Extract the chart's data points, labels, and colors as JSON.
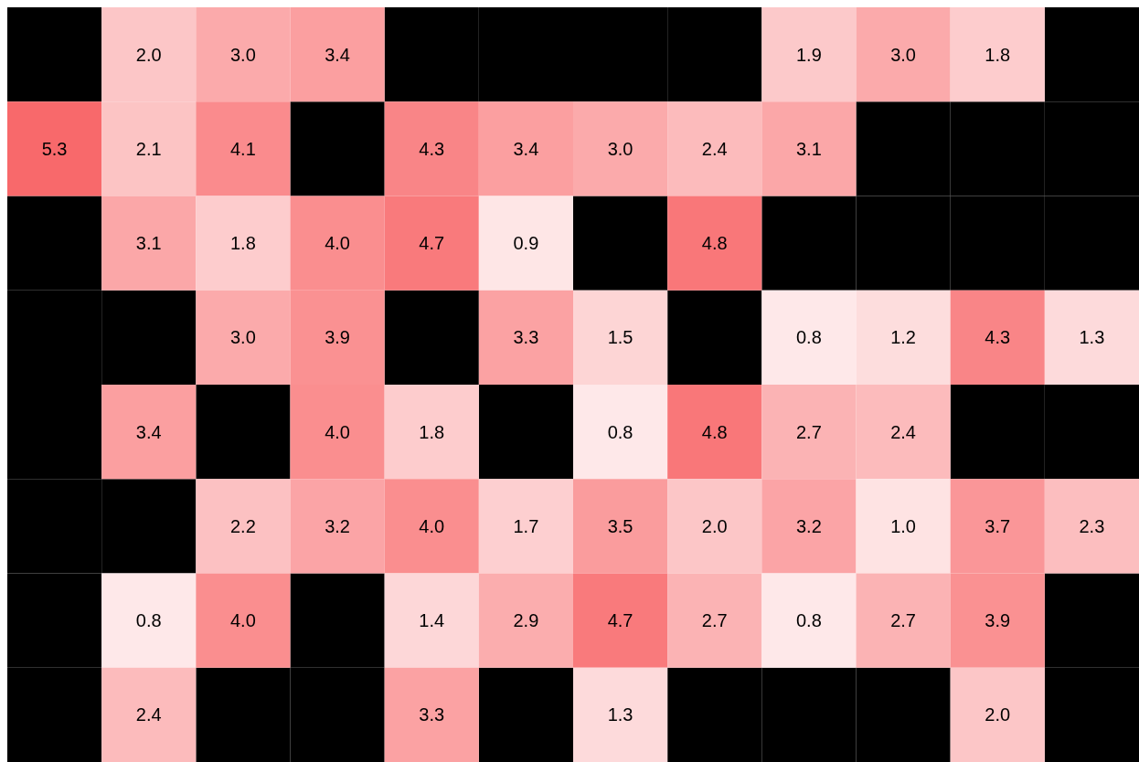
{
  "chart_data": {
    "type": "heatmap",
    "categories": [
      null,
      null,
      null,
      null,
      null,
      null,
      null,
      null,
      null,
      null,
      null,
      null
    ],
    "y_categories": [
      null,
      null,
      null,
      null,
      null,
      null,
      null,
      null
    ],
    "color": "#f8696b",
    "data_labels": true,
    "tick_labels": false,
    "cells": [
      [
        null,
        2.0,
        3.0,
        3.4,
        null,
        null,
        null,
        null,
        1.9,
        3.0,
        1.8,
        null
      ],
      [
        5.3,
        2.1,
        4.1,
        null,
        4.3,
        3.4,
        3.0,
        2.4,
        3.1,
        null,
        null,
        null
      ],
      [
        null,
        3.1,
        1.8,
        4.0,
        4.7,
        0.9,
        null,
        4.8,
        null,
        null,
        null,
        null
      ],
      [
        null,
        null,
        3.0,
        3.9,
        null,
        3.3,
        1.5,
        null,
        0.8,
        1.2,
        4.3,
        1.3
      ],
      [
        null,
        3.4,
        null,
        4.0,
        1.8,
        null,
        0.8,
        4.8,
        2.7,
        2.4,
        null,
        null
      ],
      [
        null,
        null,
        2.2,
        3.2,
        4.0,
        1.7,
        3.5,
        2.0,
        3.2,
        1.0,
        3.7,
        2.3
      ],
      [
        null,
        0.8,
        4.0,
        null,
        1.4,
        2.9,
        4.7,
        2.7,
        0.8,
        2.7,
        3.9,
        null
      ],
      [
        null,
        2.4,
        null,
        null,
        3.3,
        null,
        1.3,
        null,
        null,
        null,
        2.0,
        null
      ]
    ],
    "cell_labels": [
      [
        null,
        "2.0",
        "3.0",
        "3.4",
        null,
        null,
        null,
        null,
        "1.9",
        "3.0",
        "1.8",
        null
      ],
      [
        "5.3",
        "2.1",
        "4.1",
        null,
        "4.3",
        "3.4",
        "3.0",
        "2.4",
        "3.1",
        null,
        null,
        null
      ],
      [
        null,
        "3.1",
        "1.8",
        "4.0",
        "4.7",
        "0.9",
        null,
        "4.8",
        null,
        null,
        null,
        null
      ],
      [
        null,
        null,
        "3.0",
        "3.9",
        null,
        "3.3",
        "1.5",
        null,
        "0.8",
        "1.2",
        "4.3",
        "1.3"
      ],
      [
        null,
        "3.4",
        null,
        "4.0",
        "1.8",
        null,
        "0.8",
        "4.8",
        "2.7",
        "2.4",
        null,
        null
      ],
      [
        null,
        null,
        "2.2",
        "3.2",
        "4.0",
        "1.7",
        "3.5",
        "2.0",
        "3.2",
        "1.0",
        "3.7",
        "2.3"
      ],
      [
        null,
        "0.8",
        "4.0",
        null,
        "1.4",
        "2.9",
        "4.7",
        "2.7",
        "0.8",
        "2.7",
        "3.9",
        null
      ],
      [
        null,
        "2.4",
        null,
        null,
        "3.3",
        null,
        "1.3",
        null,
        null,
        null,
        "2.0",
        null
      ]
    ]
  }
}
